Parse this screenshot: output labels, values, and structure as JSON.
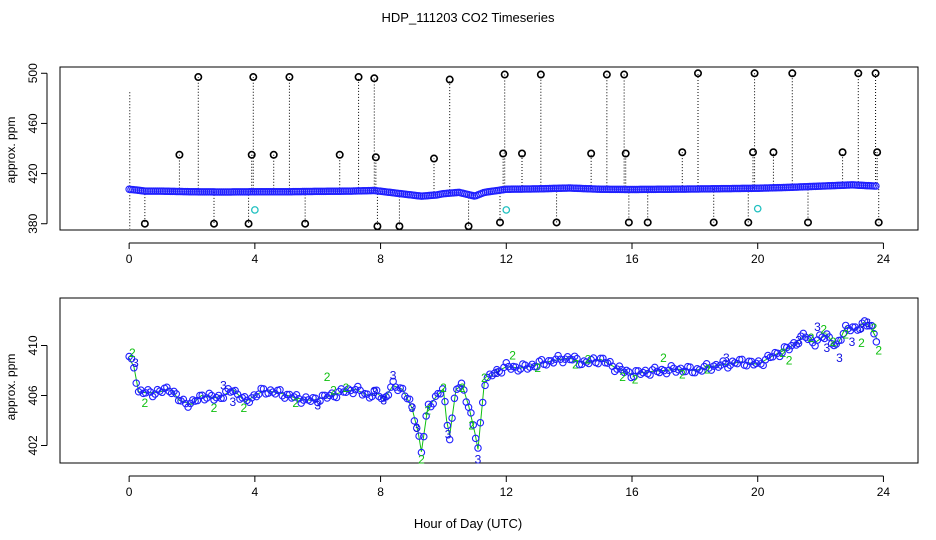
{
  "title": "HDP_111203  CO2 Timeseries",
  "xlabel": "Hour of Day (UTC)",
  "colors": {
    "raw_marker": "#000000",
    "fit_marker": "#2020ff",
    "flag2": "#10c010",
    "flag3": "#1010e0",
    "cyan": "#20c0c0"
  },
  "chart_data": [
    {
      "type": "scatter",
      "panel": "top",
      "ylabel": "approx. ppm",
      "xlim": [
        -2.2,
        25.1
      ],
      "ylim": [
        375,
        505
      ],
      "x_ticks": [
        0,
        4,
        8,
        12,
        16,
        20,
        24
      ],
      "x_tick_labels": [
        "0",
        "4",
        "8",
        "12",
        "16",
        "20",
        "24"
      ],
      "y_ticks": [
        380,
        420,
        460,
        500
      ],
      "y_tick_labels": [
        "380",
        "420",
        "460",
        "500"
      ],
      "baseline": [
        [
          0.0,
          407.5
        ],
        [
          0.2,
          407.0
        ],
        [
          0.5,
          406.0
        ],
        [
          1.0,
          406.0
        ],
        [
          2.0,
          405.5
        ],
        [
          3.0,
          405.3
        ],
        [
          4.0,
          405.5
        ],
        [
          5.0,
          405.5
        ],
        [
          6.0,
          405.8
        ],
        [
          7.0,
          406.0
        ],
        [
          7.8,
          406.5
        ],
        [
          8.3,
          405.0
        ],
        [
          8.8,
          403.5
        ],
        [
          9.3,
          402.0
        ],
        [
          9.8,
          403.0
        ],
        [
          10.0,
          404.0
        ],
        [
          10.5,
          405.0
        ],
        [
          11.0,
          402.0
        ],
        [
          11.3,
          405.0
        ],
        [
          12.0,
          407.5
        ],
        [
          13.0,
          407.8
        ],
        [
          14.0,
          408.5
        ],
        [
          15.0,
          407.5
        ],
        [
          16.0,
          407.3
        ],
        [
          17.0,
          407.5
        ],
        [
          18.0,
          407.7
        ],
        [
          19.0,
          408.0
        ],
        [
          20.0,
          408.3
        ],
        [
          21.0,
          409.0
        ],
        [
          22.0,
          410.0
        ],
        [
          23.0,
          411.0
        ],
        [
          23.8,
          410.0
        ]
      ],
      "outliers": [
        {
          "x": 0.5,
          "y": 380
        },
        {
          "x": 1.6,
          "y": 435
        },
        {
          "x": 2.2,
          "y": 497
        },
        {
          "x": 2.7,
          "y": 380
        },
        {
          "x": 3.8,
          "y": 380
        },
        {
          "x": 3.9,
          "y": 435
        },
        {
          "x": 3.95,
          "y": 497
        },
        {
          "x": 4.6,
          "y": 435
        },
        {
          "x": 5.1,
          "y": 497
        },
        {
          "x": 5.6,
          "y": 380
        },
        {
          "x": 6.7,
          "y": 435
        },
        {
          "x": 7.3,
          "y": 497
        },
        {
          "x": 7.8,
          "y": 496
        },
        {
          "x": 7.85,
          "y": 433
        },
        {
          "x": 7.9,
          "y": 378
        },
        {
          "x": 8.6,
          "y": 378
        },
        {
          "x": 9.7,
          "y": 432
        },
        {
          "x": 10.2,
          "y": 495
        },
        {
          "x": 10.8,
          "y": 378
        },
        {
          "x": 11.8,
          "y": 381
        },
        {
          "x": 11.9,
          "y": 436
        },
        {
          "x": 11.95,
          "y": 499
        },
        {
          "x": 12.5,
          "y": 436
        },
        {
          "x": 13.1,
          "y": 499
        },
        {
          "x": 13.6,
          "y": 381
        },
        {
          "x": 14.7,
          "y": 436
        },
        {
          "x": 15.2,
          "y": 499
        },
        {
          "x": 15.75,
          "y": 499
        },
        {
          "x": 15.8,
          "y": 436
        },
        {
          "x": 15.9,
          "y": 381
        },
        {
          "x": 16.5,
          "y": 381
        },
        {
          "x": 17.6,
          "y": 437
        },
        {
          "x": 18.1,
          "y": 500
        },
        {
          "x": 18.6,
          "y": 381
        },
        {
          "x": 19.7,
          "y": 381
        },
        {
          "x": 19.85,
          "y": 437
        },
        {
          "x": 19.9,
          "y": 500
        },
        {
          "x": 20.5,
          "y": 437
        },
        {
          "x": 21.1,
          "y": 500
        },
        {
          "x": 21.6,
          "y": 381
        },
        {
          "x": 22.7,
          "y": 437
        },
        {
          "x": 23.2,
          "y": 500
        },
        {
          "x": 23.75,
          "y": 500
        },
        {
          "x": 23.8,
          "y": 437
        },
        {
          "x": 23.85,
          "y": 381
        }
      ],
      "cyan_points": [
        {
          "x": 4.0,
          "y": 391
        },
        {
          "x": 12.0,
          "y": 391
        },
        {
          "x": 20.0,
          "y": 392
        }
      ]
    },
    {
      "type": "scatter",
      "panel": "bottom",
      "ylabel": "approx. ppm",
      "xlim": [
        -2.2,
        25.1
      ],
      "ylim": [
        400.6,
        413.8
      ],
      "x_ticks": [
        0,
        4,
        8,
        12,
        16,
        20,
        24
      ],
      "x_tick_labels": [
        "0",
        "4",
        "8",
        "12",
        "16",
        "20",
        "24"
      ],
      "y_ticks": [
        402,
        406,
        410
      ],
      "y_tick_labels": [
        "402",
        "406",
        "410"
      ],
      "series": [
        [
          0.0,
          409.0
        ],
        [
          0.15,
          408.3
        ],
        [
          0.3,
          406.3
        ],
        [
          0.6,
          406.2
        ],
        [
          1.0,
          406.3
        ],
        [
          1.3,
          406.6
        ],
        [
          1.6,
          405.6
        ],
        [
          2.0,
          405.3
        ],
        [
          2.3,
          406.0
        ],
        [
          2.7,
          405.8
        ],
        [
          3.0,
          406.0
        ],
        [
          3.3,
          406.5
        ],
        [
          3.7,
          405.5
        ],
        [
          4.0,
          406.0
        ],
        [
          4.3,
          406.4
        ],
        [
          4.8,
          406.2
        ],
        [
          5.3,
          405.8
        ],
        [
          5.8,
          405.6
        ],
        [
          6.3,
          405.9
        ],
        [
          6.8,
          406.3
        ],
        [
          7.2,
          406.5
        ],
        [
          7.6,
          406.0
        ],
        [
          7.9,
          406.2
        ],
        [
          8.1,
          405.7
        ],
        [
          8.4,
          406.8
        ],
        [
          8.7,
          406.5
        ],
        [
          9.0,
          405.0
        ],
        [
          9.2,
          403.0
        ],
        [
          9.3,
          401.5
        ],
        [
          9.5,
          405.0
        ],
        [
          9.8,
          406.0
        ],
        [
          10.0,
          406.5
        ],
        [
          10.1,
          404.0
        ],
        [
          10.2,
          402.8
        ],
        [
          10.4,
          406.5
        ],
        [
          10.6,
          406.8
        ],
        [
          10.8,
          405.2
        ],
        [
          11.0,
          403.0
        ],
        [
          11.1,
          401.7
        ],
        [
          11.3,
          407.0
        ],
        [
          11.6,
          407.8
        ],
        [
          12.0,
          408.3
        ],
        [
          12.5,
          408.2
        ],
        [
          13.0,
          408.5
        ],
        [
          13.5,
          408.8
        ],
        [
          14.0,
          409.0
        ],
        [
          14.5,
          408.6
        ],
        [
          15.0,
          408.9
        ],
        [
          15.5,
          408.2
        ],
        [
          16.0,
          407.7
        ],
        [
          16.5,
          407.9
        ],
        [
          17.0,
          408.0
        ],
        [
          17.5,
          408.1
        ],
        [
          18.0,
          408.0
        ],
        [
          18.5,
          408.3
        ],
        [
          19.0,
          408.5
        ],
        [
          19.5,
          408.7
        ],
        [
          20.0,
          408.5
        ],
        [
          20.5,
          409.2
        ],
        [
          21.0,
          409.8
        ],
        [
          21.5,
          410.8
        ],
        [
          21.8,
          410.2
        ],
        [
          22.2,
          410.9
        ],
        [
          22.5,
          409.8
        ],
        [
          22.8,
          411.5
        ],
        [
          23.1,
          411.2
        ],
        [
          23.4,
          411.9
        ],
        [
          23.6,
          411.4
        ],
        [
          23.8,
          410.5
        ]
      ],
      "flag_labels": [
        {
          "x": 0.1,
          "y": 409.4,
          "label": "2",
          "flag": "2"
        },
        {
          "x": 0.2,
          "y": 408.6,
          "label": "3",
          "flag": "3"
        },
        {
          "x": 0.5,
          "y": 405.4,
          "label": "2",
          "flag": "2"
        },
        {
          "x": 2.7,
          "y": 405.0,
          "label": "2",
          "flag": "2"
        },
        {
          "x": 3.0,
          "y": 406.8,
          "label": "3",
          "flag": "3"
        },
        {
          "x": 3.3,
          "y": 405.5,
          "label": "3",
          "flag": "3"
        },
        {
          "x": 3.65,
          "y": 405.0,
          "label": "2",
          "flag": "2"
        },
        {
          "x": 5.3,
          "y": 405.4,
          "label": "2",
          "flag": "2"
        },
        {
          "x": 6.0,
          "y": 405.2,
          "label": "3",
          "flag": "3"
        },
        {
          "x": 6.5,
          "y": 406.4,
          "label": "2",
          "flag": "2"
        },
        {
          "x": 6.9,
          "y": 406.6,
          "label": "2",
          "flag": "2"
        },
        {
          "x": 6.3,
          "y": 407.5,
          "label": "2",
          "flag": "2"
        },
        {
          "x": 7.8,
          "y": 406.3,
          "label": "3",
          "flag": "3"
        },
        {
          "x": 8.1,
          "y": 405.6,
          "label": "3",
          "flag": "3"
        },
        {
          "x": 8.4,
          "y": 407.6,
          "label": "3",
          "flag": "3"
        },
        {
          "x": 9.0,
          "y": 405.0,
          "label": "3",
          "flag": "3"
        },
        {
          "x": 9.15,
          "y": 403.4,
          "label": "3",
          "flag": "3"
        },
        {
          "x": 9.3,
          "y": 400.9,
          "label": "2",
          "flag": "2"
        },
        {
          "x": 9.5,
          "y": 404.8,
          "label": "2",
          "flag": "2"
        },
        {
          "x": 10.0,
          "y": 406.6,
          "label": "2",
          "flag": "2"
        },
        {
          "x": 10.15,
          "y": 402.9,
          "label": "3",
          "flag": "3"
        },
        {
          "x": 10.6,
          "y": 406.6,
          "label": "2",
          "flag": "2"
        },
        {
          "x": 10.9,
          "y": 403.6,
          "label": "2",
          "flag": "2"
        },
        {
          "x": 11.1,
          "y": 400.9,
          "label": "3",
          "flag": "3"
        },
        {
          "x": 11.3,
          "y": 407.4,
          "label": "2",
          "flag": "2"
        },
        {
          "x": 11.7,
          "y": 407.8,
          "label": "3",
          "flag": "3"
        },
        {
          "x": 12.2,
          "y": 409.2,
          "label": "2",
          "flag": "2"
        },
        {
          "x": 13.0,
          "y": 408.2,
          "label": "2",
          "flag": "2"
        },
        {
          "x": 14.2,
          "y": 408.5,
          "label": "2",
          "flag": "2"
        },
        {
          "x": 14.6,
          "y": 408.9,
          "label": "2",
          "flag": "2"
        },
        {
          "x": 15.7,
          "y": 407.5,
          "label": "2",
          "flag": "2"
        },
        {
          "x": 16.1,
          "y": 407.3,
          "label": "2",
          "flag": "2"
        },
        {
          "x": 17.0,
          "y": 409.0,
          "label": "2",
          "flag": "2"
        },
        {
          "x": 17.6,
          "y": 407.7,
          "label": "2",
          "flag": "2"
        },
        {
          "x": 18.4,
          "y": 408.1,
          "label": "2",
          "flag": "2"
        },
        {
          "x": 19.0,
          "y": 409.0,
          "label": "3",
          "flag": "3"
        },
        {
          "x": 20.8,
          "y": 409.4,
          "label": "2",
          "flag": "2"
        },
        {
          "x": 21.0,
          "y": 408.8,
          "label": "2",
          "flag": "2"
        },
        {
          "x": 21.3,
          "y": 410.4,
          "label": "3",
          "flag": "3"
        },
        {
          "x": 21.7,
          "y": 410.6,
          "label": "2",
          "flag": "2"
        },
        {
          "x": 21.9,
          "y": 411.5,
          "label": "3",
          "flag": "3"
        },
        {
          "x": 22.1,
          "y": 411.3,
          "label": "2",
          "flag": "2"
        },
        {
          "x": 22.2,
          "y": 409.8,
          "label": "3",
          "flag": "3"
        },
        {
          "x": 22.4,
          "y": 410.3,
          "label": "2",
          "flag": "2"
        },
        {
          "x": 22.6,
          "y": 409.0,
          "label": "3",
          "flag": "3"
        },
        {
          "x": 22.8,
          "y": 410.9,
          "label": "2",
          "flag": "2"
        },
        {
          "x": 23.0,
          "y": 410.3,
          "label": "3",
          "flag": "3"
        },
        {
          "x": 23.3,
          "y": 410.2,
          "label": "2",
          "flag": "2"
        },
        {
          "x": 23.5,
          "y": 411.8,
          "label": "3",
          "flag": "3"
        },
        {
          "x": 23.7,
          "y": 411.4,
          "label": "2",
          "flag": "2"
        },
        {
          "x": 23.85,
          "y": 409.6,
          "label": "2",
          "flag": "2"
        },
        {
          "x": 23.3,
          "y": 411.4,
          "label": "3",
          "flag": "3"
        }
      ]
    }
  ]
}
